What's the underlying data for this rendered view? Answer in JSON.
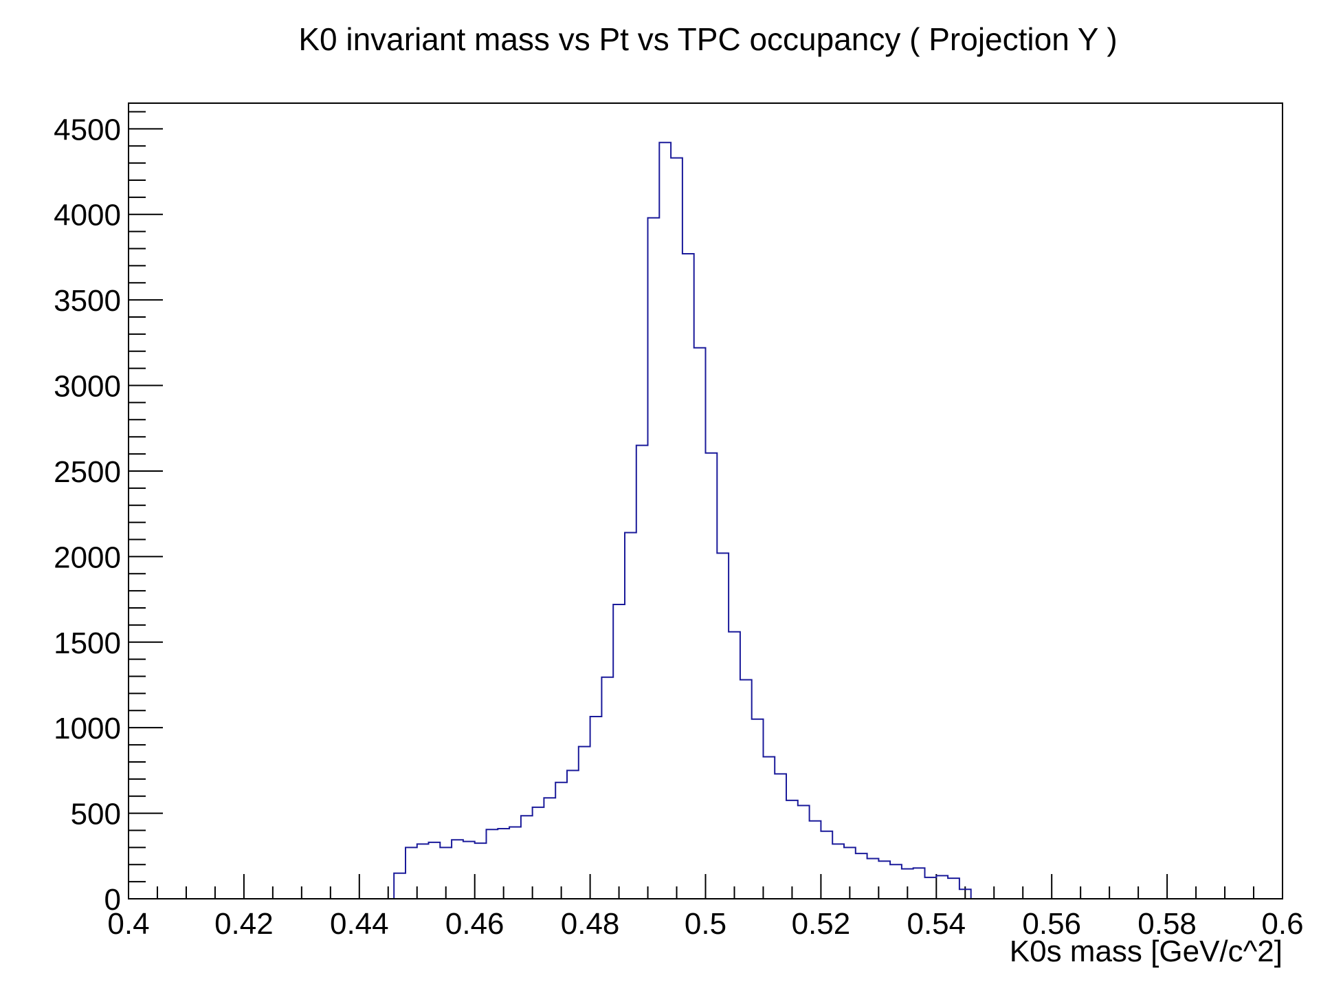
{
  "chart_data": {
    "type": "bar",
    "title": "K0 invariant mass vs Pt vs TPC occupancy ( Projection Y )",
    "xlabel": "K0s mass [GeV/c^2]",
    "ylabel": "",
    "xlim": [
      0.4,
      0.6
    ],
    "ylim": [
      0,
      4650
    ],
    "grid": false,
    "legend": "none",
    "x_tick_labels": [
      "0.4",
      "0.42",
      "0.44",
      "0.46",
      "0.48",
      "0.5",
      "0.52",
      "0.54",
      "0.56",
      "0.58",
      "0.6"
    ],
    "y_tick_labels": [
      "0",
      "500",
      "1000",
      "1500",
      "2000",
      "2500",
      "3000",
      "3500",
      "4000",
      "4500"
    ],
    "bin_width": 0.002,
    "bin_low_edges": [
      0.446,
      0.448,
      0.45,
      0.452,
      0.454,
      0.456,
      0.458,
      0.46,
      0.462,
      0.464,
      0.466,
      0.468,
      0.47,
      0.472,
      0.474,
      0.476,
      0.478,
      0.48,
      0.482,
      0.484,
      0.486,
      0.488,
      0.49,
      0.492,
      0.494,
      0.496,
      0.498,
      0.5,
      0.502,
      0.504,
      0.506,
      0.508,
      0.51,
      0.512,
      0.514,
      0.516,
      0.518,
      0.52,
      0.522,
      0.524,
      0.526,
      0.528,
      0.53,
      0.532,
      0.534,
      0.536,
      0.538,
      0.54,
      0.542,
      0.544,
      0.546
    ],
    "values": [
      150,
      300,
      320,
      330,
      300,
      345,
      335,
      325,
      405,
      410,
      420,
      485,
      535,
      590,
      680,
      750,
      890,
      1065,
      1295,
      1720,
      2140,
      2650,
      3980,
      4420,
      4330,
      3770,
      3220,
      2605,
      2020,
      1560,
      1280,
      1050,
      830,
      730,
      575,
      545,
      455,
      395,
      320,
      300,
      265,
      235,
      220,
      200,
      175,
      180,
      125,
      135,
      120,
      55,
      0
    ],
    "colors": {
      "line": "#1a1a9a",
      "axis": "#000000",
      "background": "#ffffff"
    }
  }
}
